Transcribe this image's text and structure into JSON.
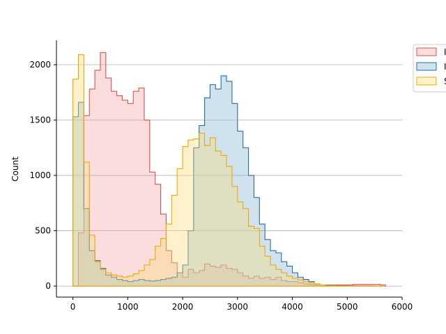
{
  "chart_data": {
    "type": "histogram",
    "title": "",
    "xlabel": "",
    "ylabel": "Count",
    "xlim": [
      -300,
      6000
    ],
    "ylim": [
      -100,
      2220
    ],
    "x_ticks": [
      0,
      1000,
      2000,
      3000,
      4000,
      5000,
      6000
    ],
    "y_ticks": [
      0,
      500,
      1000,
      1500,
      2000
    ],
    "grid": "horizontal",
    "legend": "outside-right",
    "bin_edges": [
      0,
      100,
      200,
      300,
      400,
      500,
      600,
      700,
      800,
      900,
      1000,
      1100,
      1200,
      1300,
      1400,
      1500,
      1600,
      1700,
      1800,
      1900,
      2000,
      2100,
      2200,
      2300,
      2400,
      2500,
      2600,
      2700,
      2800,
      2900,
      3000,
      3100,
      3200,
      3300,
      3400,
      3500,
      3600,
      3700,
      3800,
      3900,
      4000,
      4100,
      4200,
      4300,
      4400,
      4500,
      4600,
      4700,
      4800,
      4900,
      5000,
      5100,
      5200,
      5300,
      5400,
      5500,
      5600,
      5700
    ],
    "series": [
      {
        "name": "I",
        "color": "#d9534f",
        "fill": "rgba(240,150,145,0.32)",
        "values": [
          0,
          480,
          1540,
          1780,
          1950,
          2110,
          1880,
          1760,
          1720,
          1680,
          1650,
          1760,
          1790,
          1500,
          1030,
          920,
          650,
          320,
          210,
          120,
          80,
          150,
          120,
          140,
          200,
          180,
          170,
          190,
          160,
          150,
          120,
          90,
          70,
          90,
          70,
          80,
          60,
          80,
          50,
          40,
          40,
          30,
          20,
          15,
          10,
          10,
          10,
          10,
          10,
          10,
          10,
          15,
          15,
          15,
          15,
          15,
          10
        ]
      },
      {
        "name": "I",
        "color": "#2b6e9c",
        "fill": "rgba(140,185,215,0.42)",
        "values": [
          1530,
          1660,
          700,
          320,
          230,
          160,
          100,
          80,
          60,
          50,
          40,
          50,
          60,
          50,
          45,
          50,
          60,
          70,
          80,
          120,
          190,
          500,
          1250,
          1450,
          1700,
          1820,
          1780,
          1900,
          1850,
          1650,
          1400,
          1250,
          1000,
          800,
          560,
          420,
          320,
          300,
          220,
          180,
          120,
          80,
          60,
          40,
          20,
          10,
          8,
          6,
          4,
          3,
          2,
          2,
          1,
          1,
          1,
          0,
          0
        ]
      },
      {
        "name": "S",
        "color": "#f0a800",
        "fill": "rgba(250,220,120,0.38)",
        "values": [
          1870,
          2090,
          1120,
          460,
          220,
          150,
          120,
          100,
          90,
          80,
          90,
          110,
          140,
          190,
          240,
          360,
          430,
          560,
          820,
          1060,
          1260,
          1320,
          1330,
          1380,
          1270,
          1340,
          1220,
          1180,
          1080,
          900,
          760,
          700,
          540,
          520,
          360,
          270,
          190,
          150,
          120,
          90,
          70,
          55,
          40,
          30,
          20,
          10,
          5,
          5,
          3,
          2,
          2,
          1,
          1,
          1,
          0,
          0,
          0
        ]
      }
    ]
  }
}
